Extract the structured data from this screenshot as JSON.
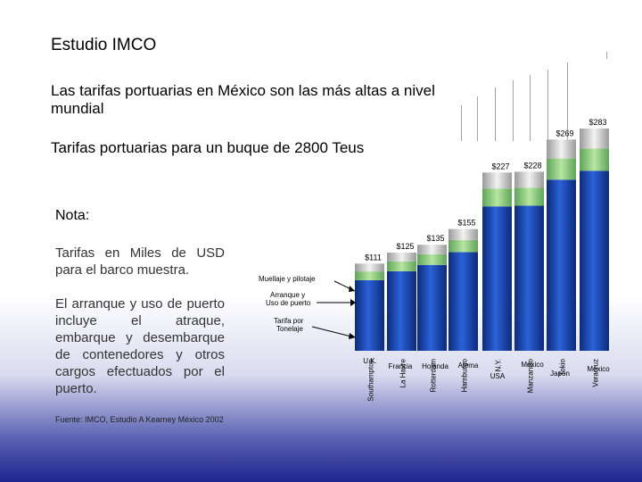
{
  "title": "Estudio IMCO",
  "subtitle": "Las tarifas portuarias en México son las más altas a nivel mundial",
  "note": {
    "heading": "Nota:",
    "paragraph1": "Tarifas en Miles de USD para el barco muestra.",
    "paragraph2": "El arranque y uso de puerto incluye el atraque, embarque y desembarque de contenedores y otros cargos efectuados por el puerto.",
    "source": "Fuente: IMCO, Estudio A Kearney México 2002"
  },
  "legend": {
    "muellaje": "Muellaje y pilotaje",
    "arranque": "Arranque y Uso de puerto",
    "tarifa": "Tarifa por Tonelaje"
  },
  "colors": {
    "blue_dark": "#0d2a7a",
    "blue_mid": "#2a62d8",
    "green": "#8ed07a",
    "gray_top": "#d8d8d8"
  },
  "chart_data": {
    "type": "bar",
    "title": "Tarifas portuarias para un buque de  2800 Teus",
    "unit": "Miles de USD",
    "categories": [
      "Southampton",
      "La Havre",
      "Rotterdam",
      "Hamburgo",
      "N.Y.",
      "Manzanillo",
      "Tokio",
      "Veracruz"
    ],
    "values": [
      111,
      125,
      135,
      155,
      227,
      228,
      269,
      283
    ],
    "value_labels": [
      "$111",
      "$125",
      "$135",
      "$155",
      "$227",
      "$228",
      "$269",
      "$283"
    ],
    "country_labels": [
      "U.K.",
      "Francia",
      "Holanda",
      "Alema",
      "USA",
      "México",
      "Japón",
      "México"
    ],
    "stacks": [
      "Tarifa por Tonelaje",
      "Arranque y Uso de puerto",
      "Muellaje y pilotaje"
    ],
    "ylim": [
      0,
      300
    ]
  }
}
